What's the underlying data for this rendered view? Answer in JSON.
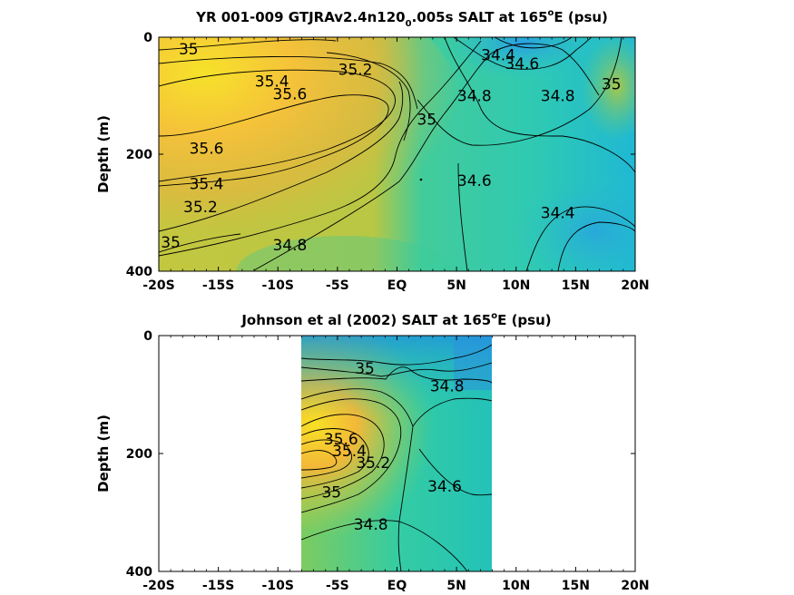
{
  "chart_data": [
    {
      "type": "contour",
      "title": "YR 001-009 GTJRAv2.4n120",
      "title_subscript": "0",
      "title_rest": ".005s SALT at 165",
      "title_superscript": "o",
      "title_end": "E (psu)",
      "ylabel": "Depth (m)",
      "xlim": [
        -20,
        20
      ],
      "ylim": [
        0,
        400
      ],
      "y_reversed": true,
      "xticks": [
        -20,
        -15,
        -10,
        -5,
        0,
        5,
        10,
        15,
        20
      ],
      "xticklabels": [
        "-20S",
        "-15S",
        "-10S",
        "-5S",
        "EQ",
        "5N",
        "10N",
        "15N",
        "20N"
      ],
      "yticks": [
        0,
        200,
        400
      ],
      "yticklabels": [
        "0",
        "200",
        "400"
      ],
      "colormap": [
        "#1f8fe8",
        "#21bfd0",
        "#2fd0a3",
        "#7ccf5e",
        "#c7c639",
        "#f2b63a",
        "#f7e128"
      ],
      "contour_labels": [
        {
          "text": "35",
          "x": -17.5,
          "y": 20
        },
        {
          "text": "35.2",
          "x": -3.5,
          "y": 55
        },
        {
          "text": "35.4",
          "x": -10.5,
          "y": 75
        },
        {
          "text": "34.4",
          "x": 8.5,
          "y": 30
        },
        {
          "text": "34.6",
          "x": 10.5,
          "y": 45
        },
        {
          "text": "34.8",
          "x": 6.5,
          "y": 100
        },
        {
          "text": "34.8",
          "x": 13.5,
          "y": 100
        },
        {
          "text": "35",
          "x": 18,
          "y": 80
        },
        {
          "text": "35.6",
          "x": -9,
          "y": 97
        },
        {
          "text": "35",
          "x": 2.5,
          "y": 140
        },
        {
          "text": "35.6",
          "x": -16,
          "y": 190
        },
        {
          "text": "35.4",
          "x": -16,
          "y": 250
        },
        {
          "text": "35.2",
          "x": -16.5,
          "y": 290
        },
        {
          "text": "34.6",
          "x": 6.5,
          "y": 245
        },
        {
          "text": "34.4",
          "x": 13.5,
          "y": 300
        },
        {
          "text": "35",
          "x": -19,
          "y": 350
        },
        {
          "text": "34.8",
          "x": -9,
          "y": 355
        }
      ]
    },
    {
      "type": "contour",
      "title": "Johnson et al (2002) SALT at 165",
      "title_superscript": "o",
      "title_end": "E (psu)",
      "ylabel": "Depth (m)",
      "xlim": [
        -20,
        20
      ],
      "ylim": [
        0,
        400
      ],
      "y_reversed": true,
      "data_extent_x": [
        -8,
        8
      ],
      "xticks": [
        -20,
        -15,
        -10,
        -5,
        0,
        5,
        10,
        15,
        20
      ],
      "xticklabels": [
        "-20S",
        "-15S",
        "-10S",
        "-5S",
        "EQ",
        "5N",
        "10N",
        "15N",
        "20N"
      ],
      "yticks": [
        0,
        200,
        400
      ],
      "yticklabels": [
        "0",
        "200",
        "400"
      ],
      "contour_labels": [
        {
          "text": "35",
          "x": -2.7,
          "y": 55
        },
        {
          "text": "34.8",
          "x": 4.2,
          "y": 85
        },
        {
          "text": "35.6",
          "x": -4.7,
          "y": 175
        },
        {
          "text": "35.4",
          "x": -4,
          "y": 195
        },
        {
          "text": "35.2",
          "x": -2,
          "y": 215
        },
        {
          "text": "34.6",
          "x": 4,
          "y": 255
        },
        {
          "text": "35",
          "x": -5.5,
          "y": 265
        },
        {
          "text": "34.8",
          "x": -2.2,
          "y": 320
        }
      ]
    }
  ]
}
